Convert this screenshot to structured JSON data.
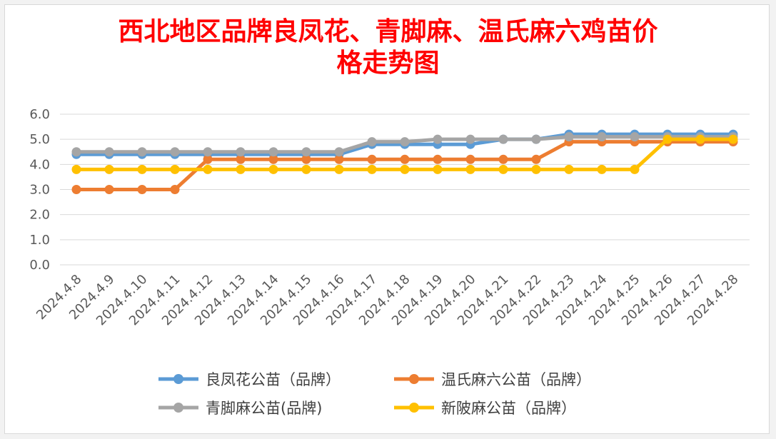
{
  "chart_data": {
    "type": "line",
    "title_line1": "西北地区品牌良凤花、青脚麻、温氏麻六鸡苗价",
    "title_line2": "格走势图",
    "xlabel": "",
    "ylabel": "",
    "ylim": [
      0,
      6
    ],
    "yticks": [
      "0.0",
      "1.0",
      "2.0",
      "3.0",
      "4.0",
      "5.0",
      "6.0"
    ],
    "grid": true,
    "legend_position": "bottom",
    "categories": [
      "2024.4.8",
      "2024.4.9",
      "2024.4.10",
      "2024.4.11",
      "2024.4.12",
      "2024.4.13",
      "2024.4.14",
      "2024.4.15",
      "2024.4.16",
      "2024.4.17",
      "2024.4.18",
      "2024.4.19",
      "2024.4.20",
      "2024.4.21",
      "2024.4.22",
      "2024.4.23",
      "2024.4.24",
      "2024.4.25",
      "2024.4.26",
      "2024.4.27",
      "2024.4.28"
    ],
    "series": [
      {
        "name": "良凤花公苗（品牌）",
        "color": "#5b9bd5",
        "values": [
          4.4,
          4.4,
          4.4,
          4.4,
          4.4,
          4.4,
          4.4,
          4.4,
          4.4,
          4.8,
          4.8,
          4.8,
          4.8,
          5.0,
          5.0,
          5.2,
          5.2,
          5.2,
          5.2,
          5.2,
          5.2
        ]
      },
      {
        "name": "温氏麻六公苗（品牌）",
        "color": "#ed7d31",
        "values": [
          3.0,
          3.0,
          3.0,
          3.0,
          4.2,
          4.2,
          4.2,
          4.2,
          4.2,
          4.2,
          4.2,
          4.2,
          4.2,
          4.2,
          4.2,
          4.9,
          4.9,
          4.9,
          4.9,
          4.9,
          4.9
        ]
      },
      {
        "name": "青脚麻公苗(品牌)",
        "color": "#a5a5a5",
        "values": [
          4.5,
          4.5,
          4.5,
          4.5,
          4.5,
          4.5,
          4.5,
          4.5,
          4.5,
          4.9,
          4.9,
          5.0,
          5.0,
          5.0,
          5.0,
          5.1,
          5.1,
          5.1,
          5.1,
          5.1,
          5.1
        ]
      },
      {
        "name": "新陂麻公苗（品牌）",
        "color": "#ffc000",
        "values": [
          3.8,
          3.8,
          3.8,
          3.8,
          3.8,
          3.8,
          3.8,
          3.8,
          3.8,
          3.8,
          3.8,
          3.8,
          3.8,
          3.8,
          3.8,
          3.8,
          3.8,
          3.8,
          5.0,
          5.0,
          5.0
        ]
      }
    ],
    "draw_order": [
      0,
      1,
      2,
      3
    ],
    "legend_order": [
      0,
      1,
      2,
      3
    ]
  }
}
